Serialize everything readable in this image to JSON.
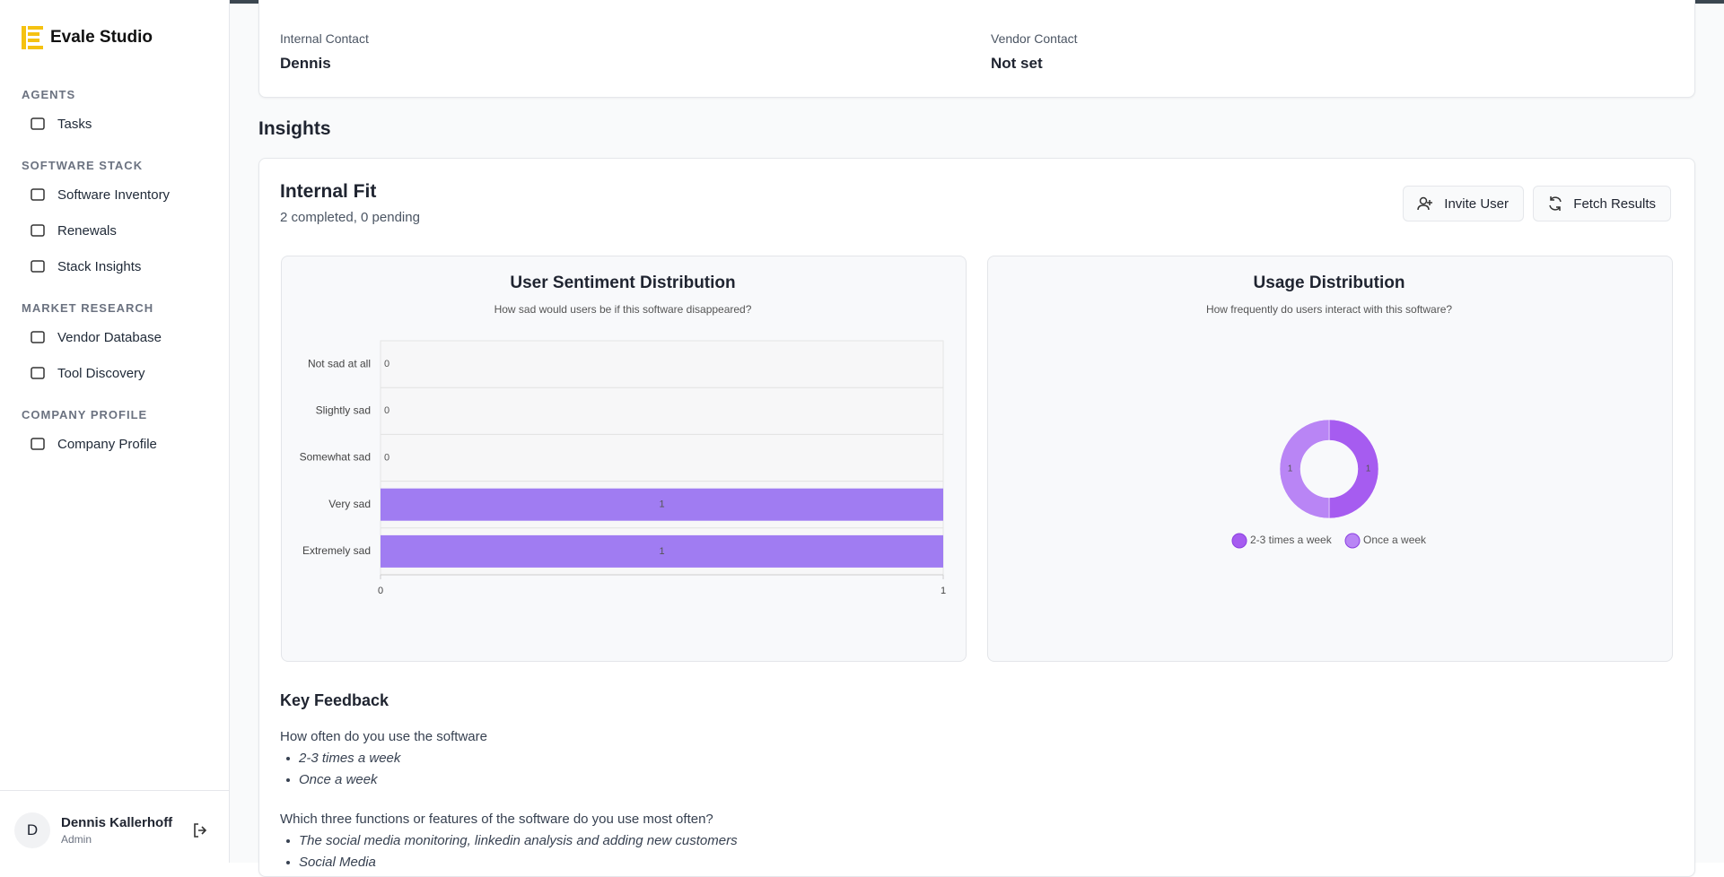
{
  "sidebar": {
    "brand": "Evale Studio",
    "sections": [
      {
        "label": "AGENTS",
        "items": [
          "Tasks"
        ]
      },
      {
        "label": "SOFTWARE STACK",
        "items": [
          "Software Inventory",
          "Renewals",
          "Stack Insights"
        ]
      },
      {
        "label": "MARKET RESEARCH",
        "items": [
          "Vendor Database",
          "Tool Discovery"
        ]
      },
      {
        "label": "COMPANY PROFILE",
        "items": [
          "Company Profile"
        ]
      }
    ],
    "user": {
      "initial": "D",
      "name": "Dennis Kallerhoff",
      "role": "Admin"
    }
  },
  "contacts": [
    {
      "label": "Internal Contact",
      "value": "Dennis"
    },
    {
      "label": "Vendor Contact",
      "value": "Not set"
    }
  ],
  "insights": {
    "heading": "Insights",
    "title": "Internal Fit",
    "subtitle": "2 completed, 0 pending",
    "buttons": [
      "Invite User",
      "Fetch Results"
    ]
  },
  "chart_data": [
    {
      "type": "hbar",
      "title": "User Sentiment Distribution",
      "subtitle": "How sad would users be if this software disappeared?",
      "categories": [
        "Not sad at all",
        "Slightly sad",
        "Somewhat sad",
        "Very sad",
        "Extremely sad"
      ],
      "values": [
        0,
        0,
        0,
        1,
        1
      ],
      "xlim": [
        0,
        1
      ],
      "xticks": [
        0,
        1
      ],
      "color": "#a07cf2"
    },
    {
      "type": "donut",
      "title": "Usage Distribution",
      "subtitle": "How frequently do users interact with this software?",
      "categories": [
        "2-3 times a week",
        "Once a week"
      ],
      "values": [
        1,
        1
      ],
      "colors": [
        "#a65cf0",
        "#b985f5"
      ],
      "legend": "bottom"
    }
  ],
  "feedback": {
    "title": "Key Feedback",
    "questions": [
      {
        "question": "How often do you use the software",
        "answers": [
          "2-3 times a week",
          "Once a week"
        ]
      },
      {
        "question": "Which three functions or features of the software do you use most often?",
        "answers": [
          "The social media monitoring, linkedin analysis and adding new customers",
          "Social Media"
        ]
      }
    ]
  }
}
